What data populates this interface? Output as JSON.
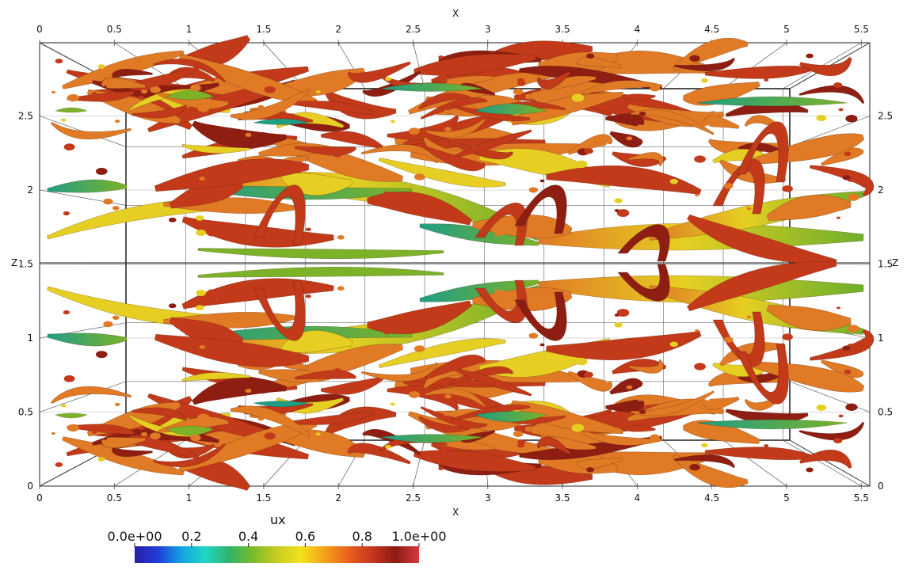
{
  "scene": {
    "axis_titles": {
      "top": "X",
      "bottom": "X",
      "left": "Z",
      "right": "Z"
    },
    "x_ticks": [
      "0",
      "0.5",
      "1",
      "1.5",
      "2",
      "2.5",
      "3",
      "3.5",
      "4",
      "4.5",
      "5",
      "5.5"
    ],
    "z_ticks": [
      "0",
      "0.5",
      "1",
      "1.5",
      "2",
      "2.5"
    ]
  },
  "colorbar": {
    "title": "ux",
    "labels": [
      "0.0e+00",
      "0.2",
      "0.4",
      "0.6",
      "0.8",
      "1.0e+00"
    ],
    "colors": [
      "#2a1fa8",
      "#1f3ed8",
      "#12a6e3",
      "#21d6c6",
      "#2fb36a",
      "#7dbb2a",
      "#c8cc22",
      "#f2e21a",
      "#f4a21a",
      "#e9621c",
      "#c8361d",
      "#8d1a14",
      "#d43a3a"
    ]
  },
  "field_colors": {
    "orange": "#e07a25",
    "red": "#c23a1a",
    "dark_red": "#8e1e12",
    "yellow": "#e6cf22",
    "green": "#7cb228",
    "teal": "#1f9e84"
  }
}
